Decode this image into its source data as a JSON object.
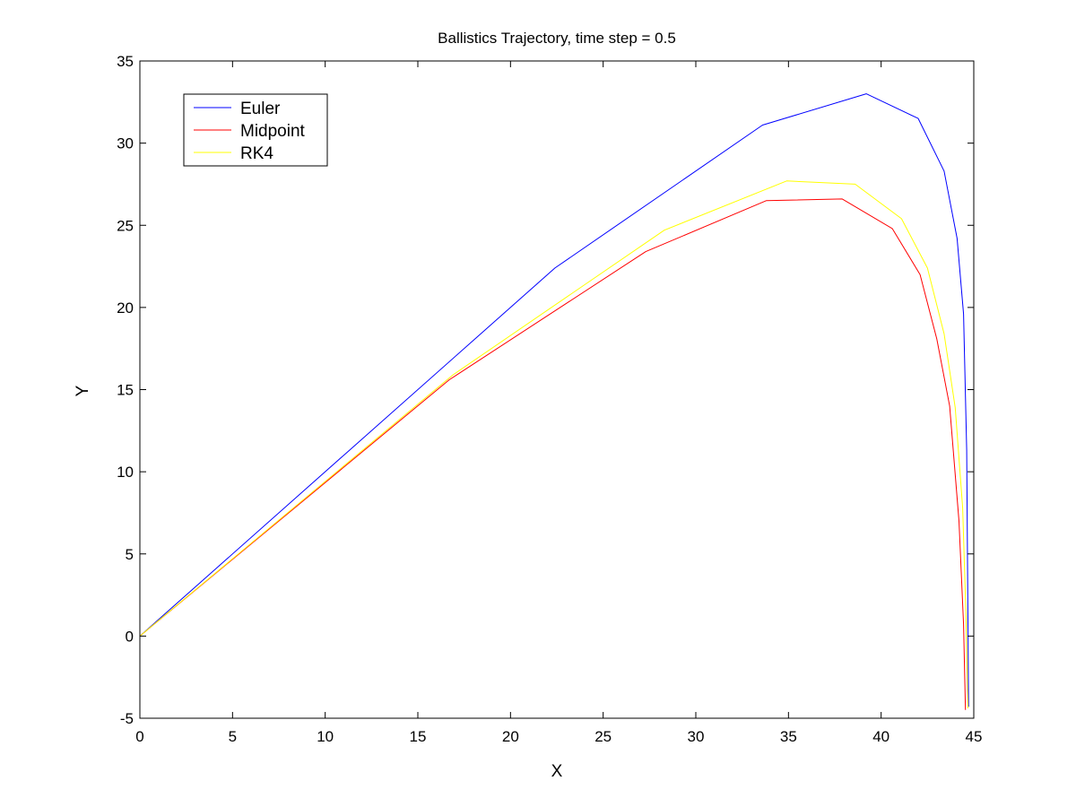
{
  "chart_data": {
    "type": "line",
    "title": "Ballistics Trajectory, time step = 0.5",
    "xlabel": "X",
    "ylabel": "Y",
    "xlim": [
      0,
      45
    ],
    "ylim": [
      -5,
      35
    ],
    "xticks": [
      0,
      5,
      10,
      15,
      20,
      25,
      30,
      35,
      40,
      45
    ],
    "yticks": [
      -5,
      0,
      5,
      10,
      15,
      20,
      25,
      30,
      35
    ],
    "grid": false,
    "legend_position": "top-left",
    "series": [
      {
        "name": "Euler",
        "color": "#0000ff",
        "x": [
          0,
          11.2,
          22.4,
          33.6,
          39.2,
          42.0,
          43.4,
          44.1,
          44.45,
          44.62,
          44.72
        ],
        "y": [
          0,
          11.2,
          22.4,
          31.1,
          33.0,
          31.5,
          28.3,
          24.2,
          19.6,
          11.3,
          -4.3
        ]
      },
      {
        "name": "Midpoint",
        "color": "#ff0000",
        "x": [
          0,
          16.7,
          27.3,
          33.8,
          37.9,
          40.6,
          42.1,
          43.0,
          43.7,
          44.2,
          44.45,
          44.55
        ],
        "y": [
          0,
          15.6,
          23.4,
          26.5,
          26.6,
          24.8,
          22.0,
          18.1,
          14.0,
          7.0,
          0.7,
          -4.5
        ]
      },
      {
        "name": "RK4",
        "color": "#ffff00",
        "x": [
          0,
          16.9,
          28.3,
          34.9,
          38.6,
          41.1,
          42.5,
          43.4,
          44.0,
          44.4,
          44.58,
          44.68
        ],
        "y": [
          0,
          15.9,
          24.7,
          27.7,
          27.5,
          25.4,
          22.4,
          18.4,
          13.9,
          7.8,
          1.2,
          -4.4
        ]
      }
    ]
  }
}
